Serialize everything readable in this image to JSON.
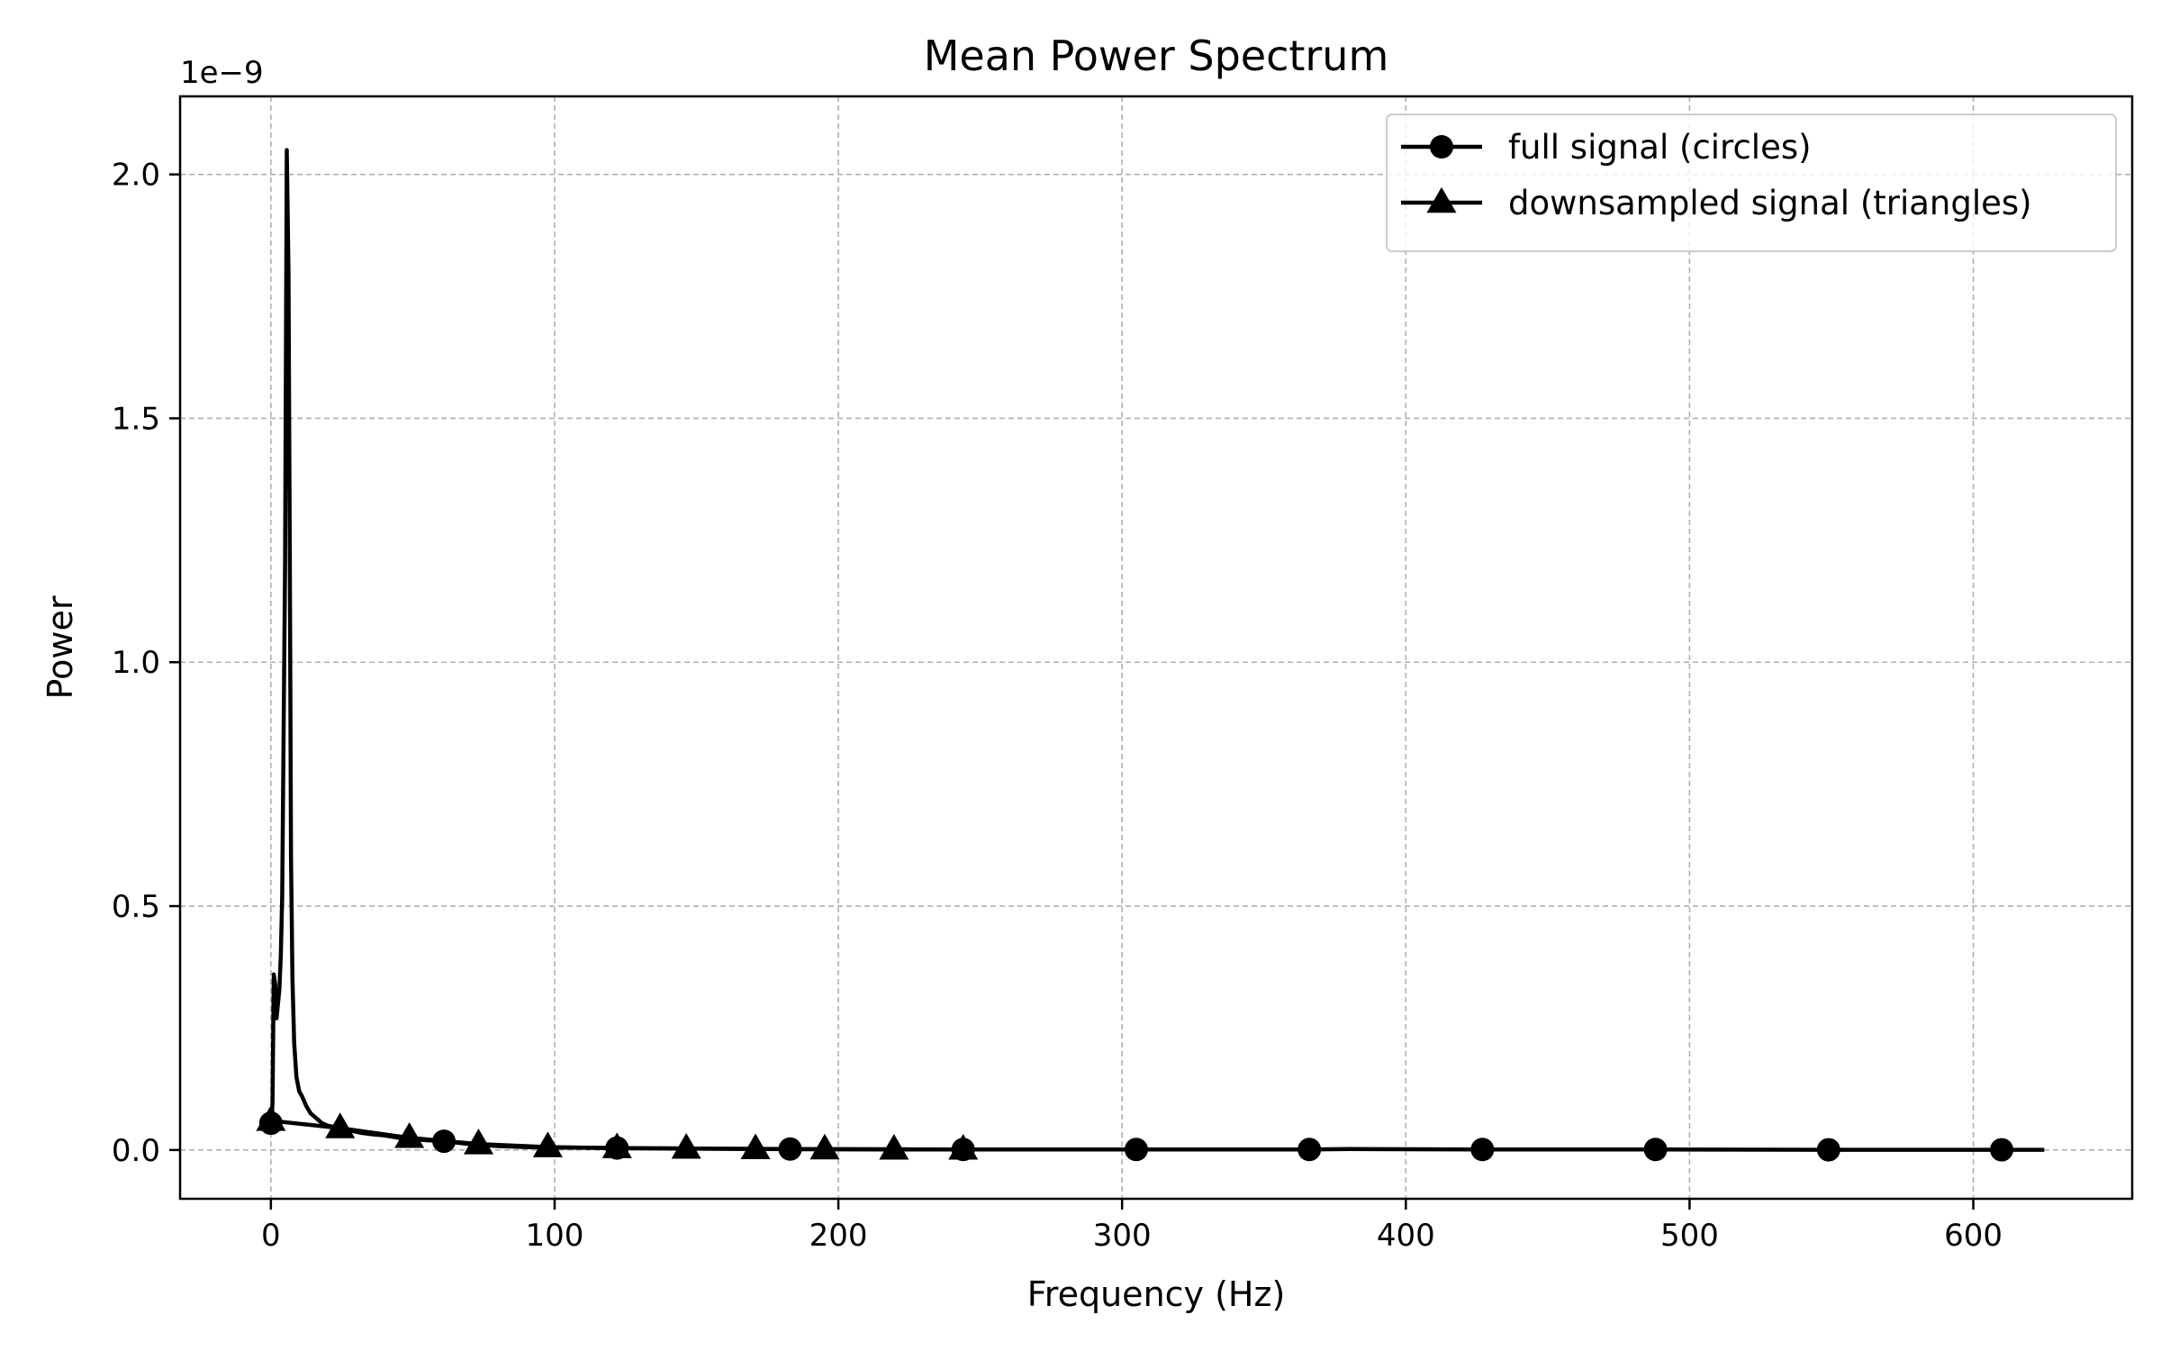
{
  "chart_data": {
    "type": "line",
    "title": "Mean Power Spectrum",
    "xlabel": "Frequency (Hz)",
    "ylabel": "Power",
    "y_offset_label": "1e−9",
    "xlim": [
      -32,
      656
    ],
    "ylim": [
      -0.1,
      2.16
    ],
    "y_scale_note": "values in units of 1e-9",
    "x_ticks": [
      0,
      100,
      200,
      300,
      400,
      500,
      600
    ],
    "y_ticks": [
      0.0,
      0.5,
      1.0,
      1.5,
      2.0
    ],
    "x_tick_labels": [
      "0",
      "100",
      "200",
      "300",
      "400",
      "500",
      "600"
    ],
    "y_tick_labels": [
      "0.0",
      "0.5",
      "1.0",
      "1.5",
      "2.0"
    ],
    "grid": true,
    "legend_position": "top-right",
    "colors": {
      "line": "#000000",
      "grid": "#b0b0b0",
      "frame": "#000000"
    },
    "series": [
      {
        "name": "full signal (circles)",
        "marker": "circle",
        "x": [
          0,
          0.3,
          0.6,
          1.0,
          1.5,
          2.0,
          2.5,
          3.0,
          3.5,
          4.0,
          5.0,
          5.6,
          6.2,
          6.7,
          7.1,
          7.6,
          8.2,
          9.0,
          10.0,
          11.0,
          12.5,
          14,
          16,
          18,
          20,
          24,
          28,
          32,
          36,
          40,
          45,
          50,
          55,
          61,
          70,
          80,
          90,
          100,
          122,
          150,
          183,
          220,
          244,
          305,
          366,
          380,
          427,
          488,
          549,
          610,
          625
        ],
        "y": [
          0.055,
          0.06,
          0.1,
          0.36,
          0.34,
          0.27,
          0.3,
          0.33,
          0.4,
          0.52,
          1.2,
          2.05,
          1.8,
          1.2,
          0.6,
          0.35,
          0.22,
          0.15,
          0.12,
          0.11,
          0.09,
          0.075,
          0.065,
          0.055,
          0.05,
          0.045,
          0.04,
          0.035,
          0.032,
          0.03,
          0.025,
          0.022,
          0.02,
          0.018,
          0.012,
          0.008,
          0.006,
          0.005,
          0.004,
          0.003,
          0.002,
          0.0015,
          0.001,
          0.001,
          0.001,
          0.002,
          0.001,
          0.001,
          0.0005,
          0.0005,
          0.0005
        ],
        "markers_x": [
          0,
          61,
          122,
          183,
          244,
          305,
          366,
          427,
          488,
          549,
          610
        ],
        "markers_y": [
          0.055,
          0.018,
          0.004,
          0.002,
          0.001,
          0.001,
          0.001,
          0.001,
          0.001,
          0.0005,
          0.0005
        ]
      },
      {
        "name": "downsampled signal (triangles)",
        "marker": "triangle",
        "x": [
          0,
          24.4,
          48.8,
          73.2,
          97.6,
          122,
          146.4,
          170.8,
          195.2,
          219.6,
          244
        ],
        "y": [
          0.06,
          0.045,
          0.025,
          0.012,
          0.006,
          0.004,
          0.003,
          0.002,
          0.0015,
          0.0012,
          0.001
        ],
        "markers_x": [
          0,
          24.4,
          48.8,
          73.2,
          97.6,
          122,
          146.4,
          170.8,
          195.2,
          219.6,
          244
        ],
        "markers_y": [
          0.06,
          0.045,
          0.025,
          0.012,
          0.006,
          0.004,
          0.003,
          0.002,
          0.0015,
          0.0012,
          0.001
        ]
      }
    ]
  }
}
